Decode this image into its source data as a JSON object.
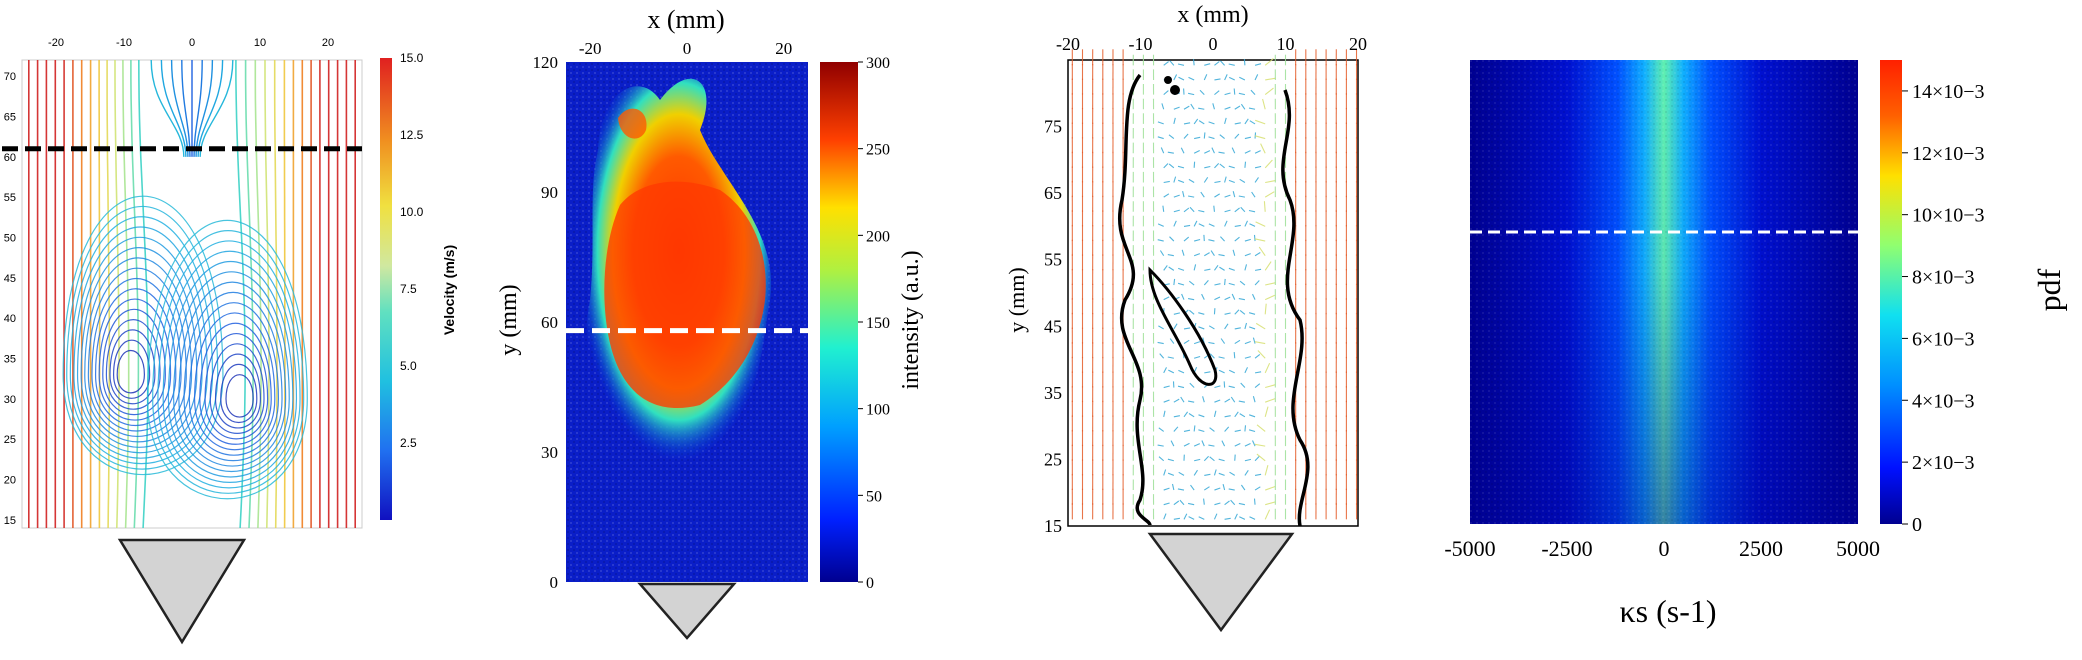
{
  "chart_data": [
    {
      "type": "heatmap",
      "subtype": "streamlines",
      "xticks": [
        "-20",
        "-10",
        "0",
        "10",
        "20"
      ],
      "yticks": [
        "70",
        "65",
        "60",
        "55",
        "50",
        "45",
        "40",
        "35",
        "30",
        "25",
        "20",
        "15"
      ],
      "xlim": [
        -25,
        25
      ],
      "ylim": [
        14,
        72
      ],
      "colorbar_label": "Velocity (m/s)",
      "colorbar_ticks": [
        "15.0",
        "12.5",
        "10.0",
        "7.5",
        "5.0",
        "2.5"
      ],
      "colorbar_range": [
        0,
        15
      ],
      "dashed_line_y": 61,
      "dashed_line_color": "#000000",
      "colormap": [
        "#1a1aa0",
        "#2060e0",
        "#20b0e0",
        "#40d8c0",
        "#c8e880",
        "#f0d040",
        "#f08020",
        "#d02020"
      ]
    },
    {
      "type": "heatmap",
      "xlabel": "x (mm)",
      "ylabel": "y (mm)",
      "xticks": [
        "-20",
        "0",
        "20"
      ],
      "yticks": [
        "120",
        "90",
        "60",
        "30",
        "0"
      ],
      "xlim": [
        -25,
        25
      ],
      "ylim": [
        0,
        120
      ],
      "colorbar_label": "intensity (a.u.)",
      "colorbar_ticks": [
        "300",
        "250",
        "200",
        "150",
        "100",
        "50",
        "0"
      ],
      "colorbar_range": [
        0,
        300
      ],
      "dashed_line_y": 58,
      "dashed_line_color": "#ffffff"
    },
    {
      "type": "scatter",
      "subtype": "vector field",
      "xlabel": "x (mm)",
      "ylabel": "y (mm)",
      "xticks": [
        "-20",
        "-10",
        "0",
        "10",
        "20"
      ],
      "yticks": [
        "75",
        "65",
        "55",
        "45",
        "35",
        "25",
        "15"
      ],
      "xlim": [
        -20,
        20
      ],
      "ylim": [
        15,
        85
      ]
    },
    {
      "type": "heatmap",
      "xlabel": "κs (s-1)",
      "xticks": [
        "-5000",
        "-2500",
        "0",
        "2500",
        "5000"
      ],
      "xlim": [
        -5000,
        5000
      ],
      "colorbar_label": "pdf",
      "colorbar_ticks": [
        "14×10−3",
        "12×10−3",
        "10×10−3",
        "8×10−3",
        "6×10−3",
        "4×10−3",
        "2×10−3",
        "0"
      ],
      "colorbar_range": [
        0,
        0.015
      ],
      "dashed_line_color": "#ffffff"
    }
  ]
}
